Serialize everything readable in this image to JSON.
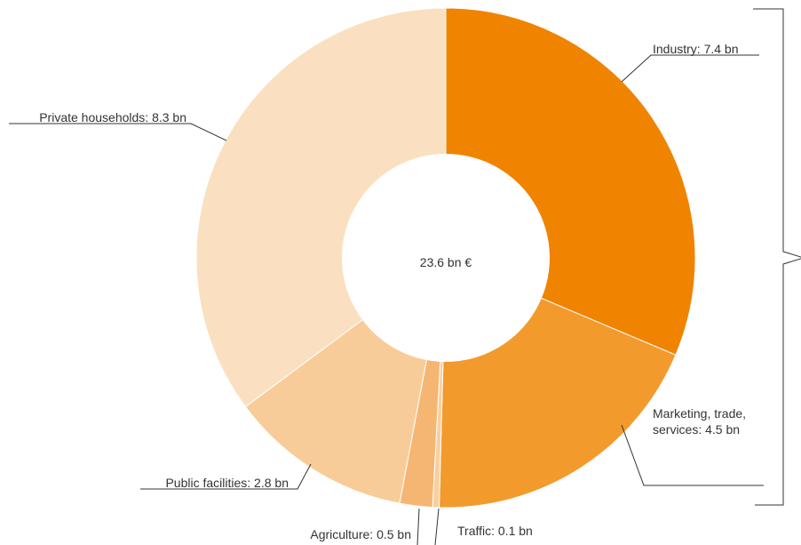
{
  "chart_data": {
    "type": "donut",
    "center_label": "23.6 bn €",
    "categories": [
      "Industry",
      "Marketing, trade, services",
      "Traffic",
      "Agriculture",
      "Public facilities",
      "Private households"
    ],
    "values": [
      7.4,
      4.5,
      0.1,
      0.5,
      2.8,
      8.3
    ],
    "value_labels": [
      [
        "Industry: 7.4 bn"
      ],
      [
        "Marketing, trade,",
        "services: 4.5 bn"
      ],
      [
        "Traffic: 0.1 bn"
      ],
      [
        "Agriculture: 0.5 bn"
      ],
      [
        "Public facilities: 2.8 bn"
      ],
      [
        "Private households: 8.3 bn"
      ]
    ],
    "colors": [
      "#f08300",
      "#f39a2d",
      "#f9cfa0",
      "#f5b673",
      "#f8cc98",
      "#fae0c0"
    ]
  }
}
